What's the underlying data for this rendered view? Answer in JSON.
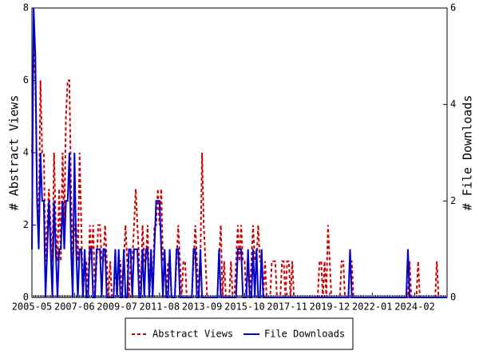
{
  "chart_data": {
    "type": "line",
    "ylabel": "# Abstract Views",
    "y2label": "# File Downloads",
    "categories": [
      "2005-05",
      null,
      null,
      null,
      null,
      null,
      null,
      null,
      null,
      null,
      null,
      null,
      null,
      null,
      null,
      null,
      null,
      null,
      null,
      null,
      null,
      null,
      null,
      null,
      null,
      "2007-06",
      null,
      null,
      null,
      null,
      null,
      null,
      null,
      null,
      null,
      null,
      null,
      null,
      null,
      null,
      null,
      null,
      null,
      null,
      null,
      null,
      null,
      null,
      null,
      null,
      "2009-07",
      null,
      null,
      null,
      null,
      null,
      null,
      null,
      null,
      null,
      null,
      null,
      null,
      null,
      null,
      null,
      null,
      null,
      null,
      null,
      null,
      null,
      null,
      null,
      null,
      "2011-08",
      null,
      null,
      null,
      null,
      null,
      null,
      null,
      null,
      null,
      null,
      null,
      null,
      null,
      null,
      null,
      null,
      null,
      null,
      null,
      null,
      null,
      null,
      null,
      null,
      "2013-09",
      null,
      null,
      null,
      null,
      null,
      null,
      null,
      null,
      null,
      null,
      null,
      null,
      null,
      null,
      null,
      null,
      null,
      null,
      null,
      null,
      null,
      null,
      null,
      null,
      "2015-10",
      null,
      null,
      null,
      null,
      null,
      null,
      null,
      null,
      null,
      null,
      null,
      null,
      null,
      null,
      null,
      null,
      null,
      null,
      null,
      null,
      null,
      null,
      null,
      null,
      "2017-11",
      null,
      null,
      null,
      null,
      null,
      null,
      null,
      null,
      null,
      null,
      null,
      null,
      null,
      null,
      null,
      null,
      null,
      null,
      null,
      null,
      null,
      null,
      null,
      null,
      "2019-12",
      null,
      null,
      null,
      null,
      null,
      null,
      null,
      null,
      null,
      null,
      null,
      null,
      null,
      null,
      null,
      null,
      null,
      null,
      null,
      null,
      null,
      null,
      null,
      null,
      "2022-01",
      null,
      null,
      null,
      null,
      null,
      null,
      null,
      null,
      null,
      null,
      null,
      null,
      null,
      null,
      null,
      null,
      null,
      null,
      null,
      null,
      null,
      null,
      null,
      null,
      "2024-02",
      null,
      null,
      null,
      null,
      null,
      null,
      null,
      null,
      null,
      null,
      null,
      null,
      null,
      null,
      null,
      null,
      null,
      null,
      null
    ],
    "series": [
      {
        "name": "Abstract Views",
        "color": "#cc0000",
        "dash": true,
        "values": [
          4,
          7,
          6,
          3,
          2,
          6,
          4,
          4,
          1,
          2,
          3,
          2,
          1,
          4,
          2,
          1,
          3,
          1,
          4,
          2,
          5,
          6,
          6,
          3,
          1,
          2,
          2,
          1,
          4,
          2,
          0,
          1,
          1,
          0,
          2,
          1,
          2,
          0,
          1,
          2,
          2,
          1,
          1,
          2,
          1,
          0,
          1,
          0,
          0,
          1,
          0,
          1,
          1,
          0,
          1,
          2,
          1,
          0,
          1,
          1,
          2,
          3,
          2,
          1,
          0,
          2,
          1,
          1,
          2,
          0,
          1,
          0,
          2,
          2,
          3,
          2,
          3,
          1,
          1,
          0,
          1,
          1,
          0,
          0,
          0,
          1,
          2,
          1,
          0,
          1,
          1,
          0,
          0,
          0,
          0,
          1,
          2,
          1,
          0,
          1,
          4,
          2,
          1,
          0,
          0,
          0,
          0,
          0,
          0,
          0,
          1,
          2,
          0,
          1,
          0,
          0,
          0,
          1,
          0,
          0,
          1,
          2,
          1,
          2,
          1,
          1,
          0,
          1,
          0,
          1,
          2,
          1,
          1,
          2,
          1,
          1,
          0,
          1,
          0,
          0,
          0,
          1,
          1,
          1,
          0,
          0,
          0,
          1,
          1,
          0,
          1,
          1,
          0,
          1,
          0,
          0,
          0,
          0,
          0,
          0,
          0,
          0,
          0,
          0,
          0,
          0,
          0,
          0,
          0,
          1,
          1,
          0,
          1,
          0,
          2,
          1,
          0,
          0,
          0,
          0,
          0,
          0,
          1,
          1,
          0,
          0,
          0,
          1,
          1,
          0,
          0,
          0,
          0,
          0,
          0,
          0,
          0,
          0,
          0,
          0,
          0,
          0,
          0,
          0,
          0,
          0,
          0,
          0,
          0,
          0,
          0,
          0,
          0,
          0,
          0,
          0,
          0,
          0,
          0,
          0,
          0,
          0,
          1,
          0,
          0,
          0,
          0,
          1,
          0,
          0,
          0,
          0,
          0,
          0,
          0,
          0,
          0,
          0,
          1,
          0,
          0,
          0,
          0,
          0,
          0
        ]
      },
      {
        "name": "File Downloads",
        "color": "#0000cc",
        "dash": false,
        "axis": "y2",
        "values": [
          1,
          6,
          5,
          2,
          1,
          3,
          2,
          2,
          0,
          1,
          2,
          1,
          0,
          2,
          1,
          0,
          1,
          1,
          2,
          1,
          2,
          2,
          3,
          1,
          0,
          3,
          1,
          0,
          1,
          1,
          0,
          1,
          0,
          0,
          1,
          1,
          0,
          0,
          1,
          1,
          1,
          0,
          1,
          1,
          0,
          0,
          0,
          0,
          0,
          1,
          0,
          1,
          0,
          0,
          1,
          0,
          0,
          1,
          1,
          0,
          1,
          1,
          1,
          0,
          0,
          1,
          0,
          1,
          1,
          0,
          1,
          0,
          1,
          2,
          2,
          2,
          1,
          0,
          1,
          0,
          0,
          1,
          0,
          0,
          0,
          1,
          1,
          0,
          0,
          0,
          0,
          0,
          0,
          0,
          0,
          1,
          1,
          0,
          0,
          1,
          0,
          0,
          0,
          0,
          0,
          0,
          0,
          0,
          0,
          0,
          1,
          0,
          0,
          0,
          0,
          0,
          0,
          0,
          0,
          0,
          0,
          1,
          1,
          1,
          0,
          0,
          0,
          1,
          0,
          0,
          1,
          0,
          1,
          0,
          0,
          1,
          0,
          0,
          0,
          0,
          0,
          0,
          0,
          0,
          0,
          0,
          0,
          0,
          0,
          0,
          0,
          0,
          0,
          0,
          0,
          0,
          0,
          0,
          0,
          0,
          0,
          0,
          0,
          0,
          0,
          0,
          0,
          0,
          0,
          0,
          0,
          0,
          0,
          0,
          0,
          0,
          0,
          0,
          0,
          0,
          0,
          0,
          0,
          0,
          0,
          0,
          0,
          1,
          0,
          0,
          0,
          0,
          0,
          0,
          0,
          0,
          0,
          0,
          0,
          0,
          0,
          0,
          0,
          0,
          0,
          0,
          0,
          0,
          0,
          0,
          0,
          0,
          0,
          0,
          0,
          0,
          0,
          0,
          0,
          0,
          0,
          1,
          0,
          0,
          0,
          0,
          0,
          0,
          0,
          0,
          0,
          0,
          0,
          0,
          0,
          0,
          0,
          0,
          0,
          0,
          0,
          0,
          0,
          0,
          0
        ]
      }
    ],
    "ylim": [
      0,
      8
    ],
    "yticks": [
      0,
      2,
      4,
      6,
      8
    ],
    "y2lim": [
      0,
      6
    ],
    "y2ticks": [
      0,
      2,
      4,
      6
    ]
  }
}
